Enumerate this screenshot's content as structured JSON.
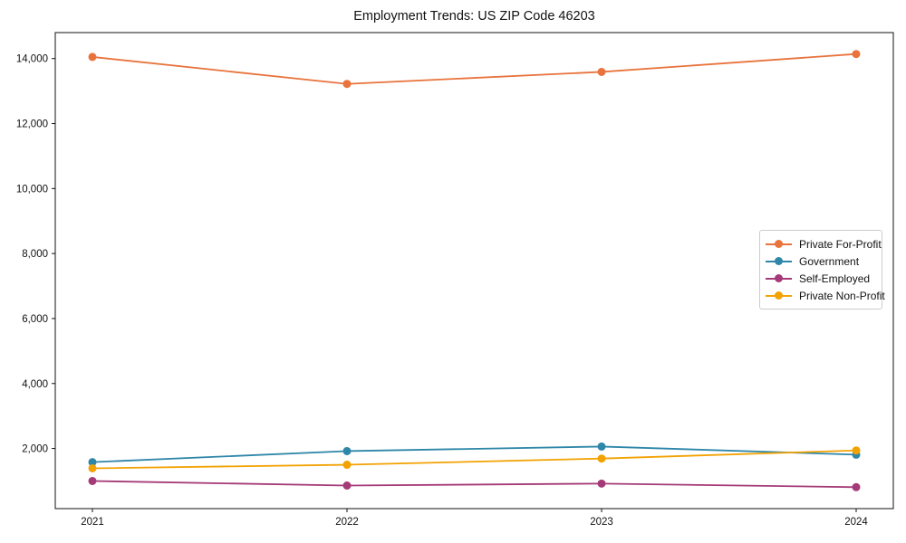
{
  "title": "Employment Trends: US ZIP Code 46203",
  "chart_data": {
    "type": "line",
    "x": [
      2021,
      2022,
      2023,
      2024
    ],
    "x_tick_labels": [
      "2021",
      "2022",
      "2023",
      "2024"
    ],
    "series": [
      {
        "name": "Private For-Profit",
        "color": "#E8733C",
        "values": [
          14050,
          13220,
          13590,
          14140
        ]
      },
      {
        "name": "Government",
        "color": "#2E86A8",
        "values": [
          1580,
          1920,
          2060,
          1810
        ]
      },
      {
        "name": "Self-Employed",
        "color": "#A53A78",
        "values": [
          1000,
          860,
          920,
          810
        ]
      },
      {
        "name": "Private Non-Profit",
        "color": "#F2A202",
        "values": [
          1390,
          1500,
          1690,
          1940
        ]
      }
    ],
    "y_ticks": [
      2000,
      4000,
      6000,
      8000,
      10000,
      12000,
      14000
    ],
    "y_tick_labels": [
      "2,000",
      "4,000",
      "6,000",
      "8,000",
      "10,000",
      "12,000",
      "14,000"
    ],
    "ylim": [
      150,
      14800
    ],
    "xlabel": "",
    "ylabel": "",
    "grid": false,
    "marker": "circle",
    "legend_position": "center-right",
    "axis_color": "#111111",
    "background_color": "#ffffff"
  }
}
